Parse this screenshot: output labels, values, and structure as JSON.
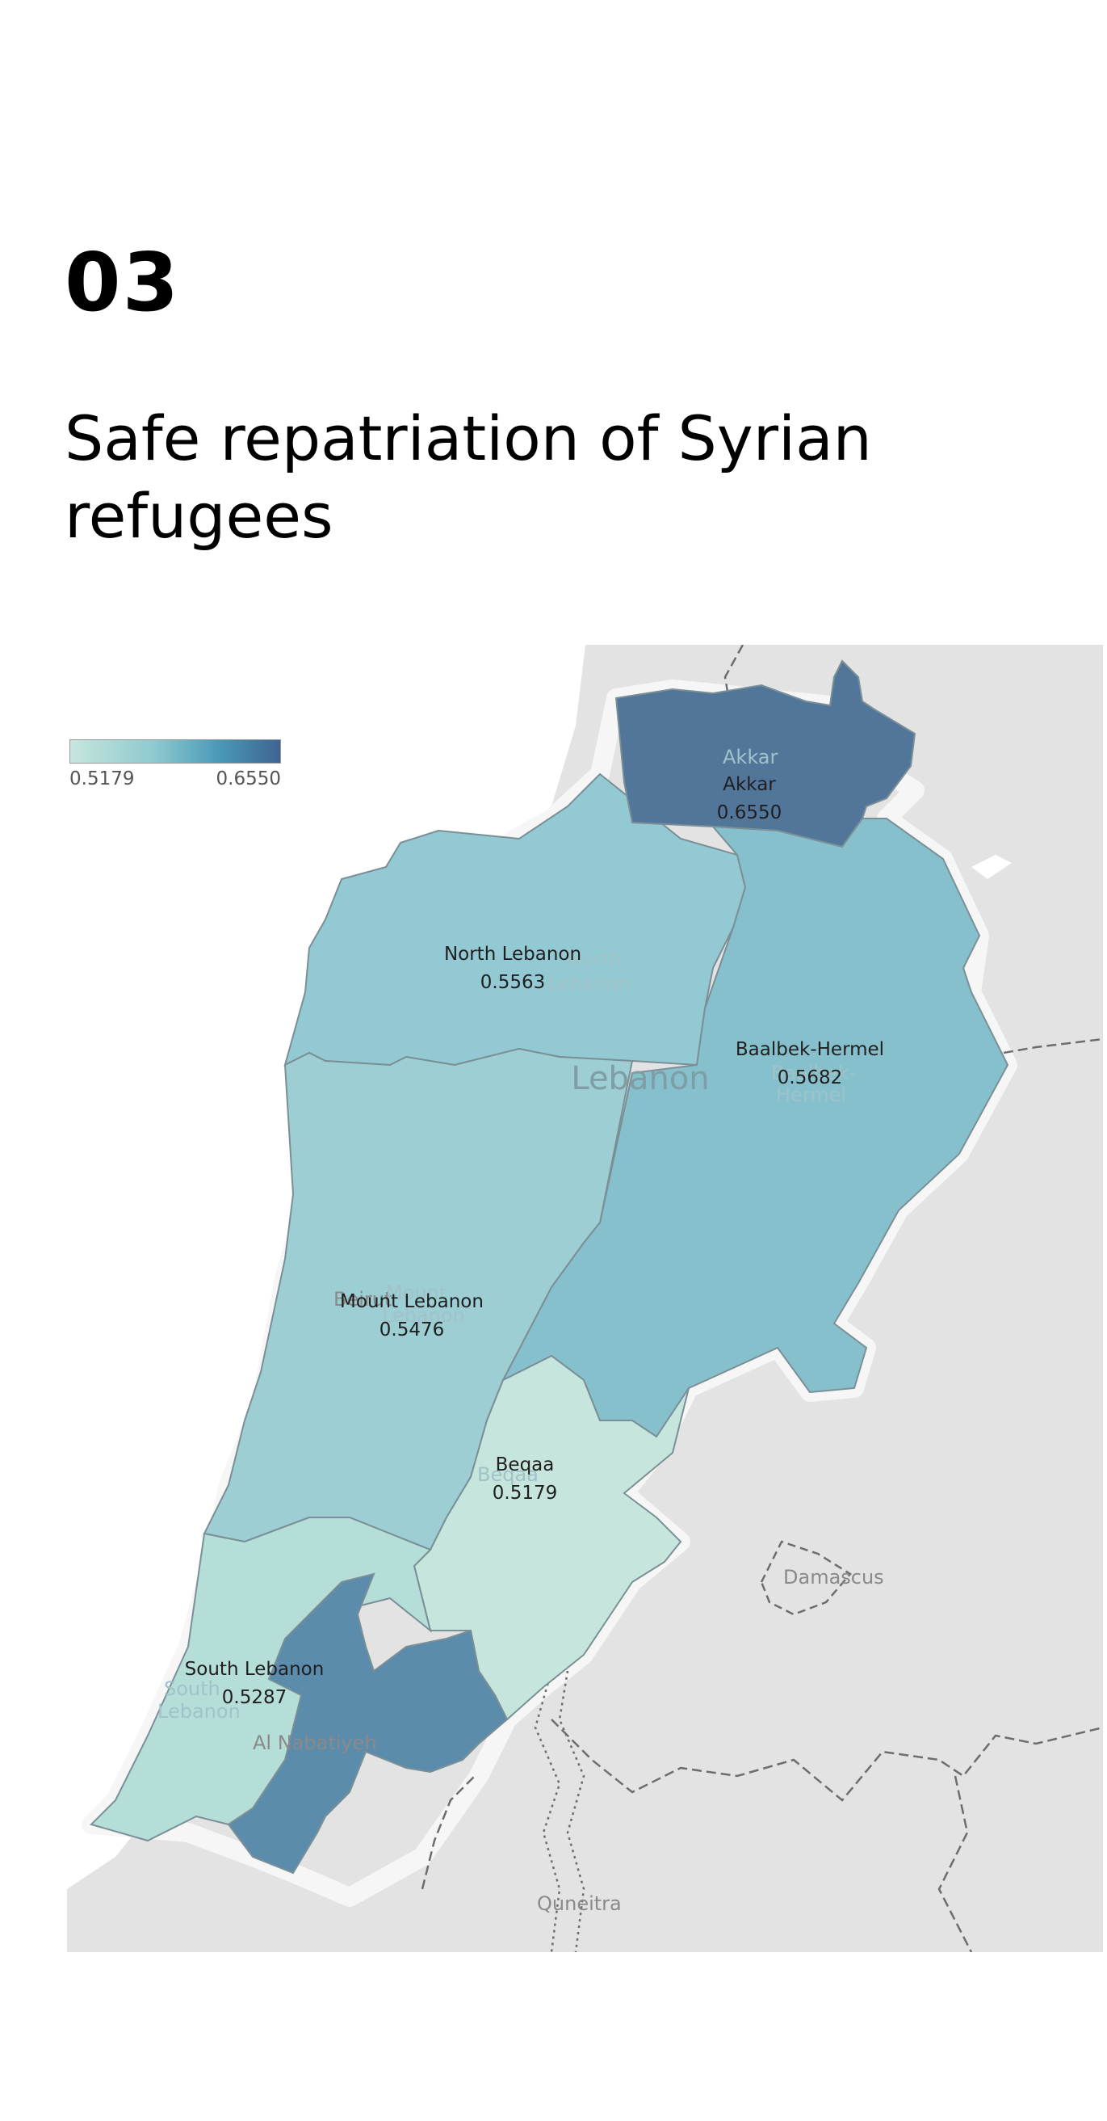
{
  "section": {
    "number": "03",
    "title": "Safe repatriation of Syrian refugees"
  },
  "legend": {
    "min_label": "0.5179",
    "max_label": "0.6550",
    "color_min": "#c6e6dd",
    "color_max": "#3e6492"
  },
  "map": {
    "country_label": "Lebanon",
    "regions": [
      {
        "name": "Akkar",
        "value": "0.6550",
        "color": "#52769a"
      },
      {
        "name": "North Lebanon",
        "value": "0.5563",
        "color": "#93c9d2"
      },
      {
        "name": "Baalbek-Hermel",
        "value": "0.5682",
        "color": "#86c0cc"
      },
      {
        "name": "Mount Lebanon",
        "value": "0.5476",
        "color": "#9dced3"
      },
      {
        "name": "Beqaa",
        "value": "0.5179",
        "color": "#c6e6dd"
      },
      {
        "name": "South Lebanon",
        "value": "0.5287",
        "color": "#b5ded9"
      },
      {
        "name": "Al Nabatiyeh",
        "value": "",
        "color": "#5b8cac"
      }
    ],
    "basemap_labels": {
      "beirut": "Beirut",
      "damascus": "Damascus",
      "quneitra": "Quneitra",
      "al_nabatiyeh": "Al Nabatiyeh",
      "ghost_north_1": "North",
      "ghost_north_2": "Lebanon",
      "ghost_akkar": "Akkar",
      "ghost_baalbek_1": "Baalbek-",
      "ghost_baalbek_2": "Hermel",
      "ghost_mount_1": "Mount",
      "ghost_mount_2": "Lebanon",
      "ghost_beqaa": "Beqaa",
      "ghost_south_1": "South",
      "ghost_south_2": "Lebanon"
    }
  }
}
